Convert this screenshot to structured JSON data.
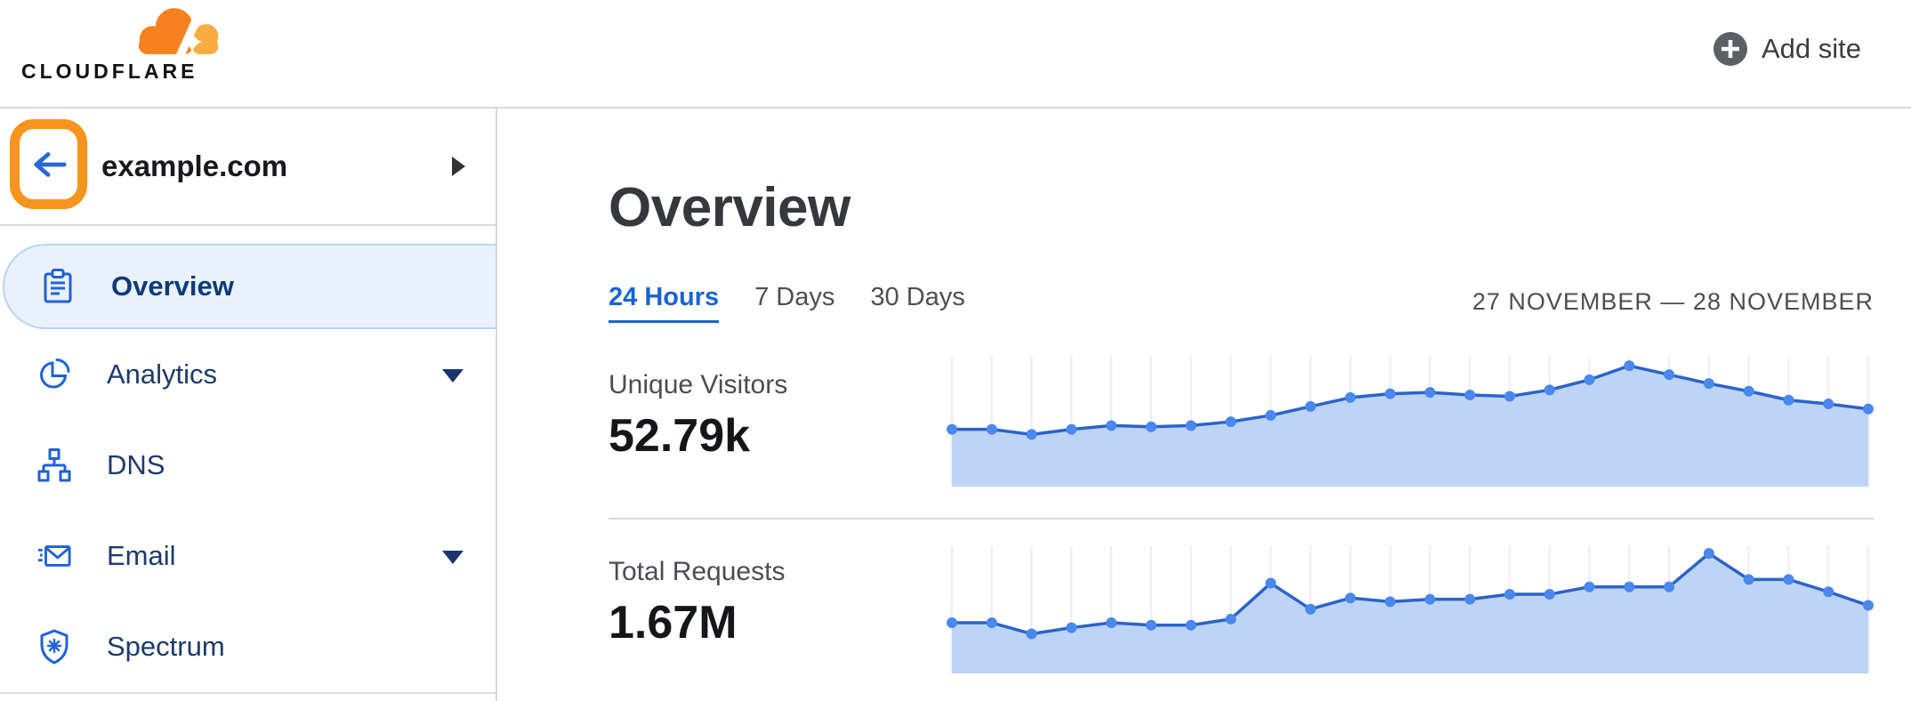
{
  "header": {
    "logo_text": "CLOUDFLARE",
    "add_site_label": "Add site"
  },
  "sidebar": {
    "site": {
      "name": "example.com"
    },
    "items": [
      {
        "label": "Overview",
        "icon": "clipboard-icon",
        "selected": true,
        "has_caret": false
      },
      {
        "label": "Analytics",
        "icon": "pie-chart-icon",
        "selected": false,
        "has_caret": true
      },
      {
        "label": "DNS",
        "icon": "dns-tree-icon",
        "selected": false,
        "has_caret": false
      },
      {
        "label": "Email",
        "icon": "email-icon",
        "selected": false,
        "has_caret": true
      },
      {
        "label": "Spectrum",
        "icon": "shield-icon",
        "selected": false,
        "has_caret": false
      }
    ]
  },
  "main": {
    "title": "Overview",
    "tabs": [
      {
        "label": "24 Hours",
        "active": true
      },
      {
        "label": "7 Days",
        "active": false
      },
      {
        "label": "30 Days",
        "active": false
      }
    ],
    "date_range": "27 NOVEMBER — 28 NOVEMBER",
    "metrics": [
      {
        "label": "Unique Visitors",
        "value": "52.79k"
      },
      {
        "label": "Total Requests",
        "value": "1.67M"
      }
    ]
  },
  "chart_data": [
    {
      "type": "area",
      "title": "Unique Visitors",
      "total_label": "52.79k",
      "period": "24 Hours",
      "x": "hourly points, 27 November — 28 November (no axis labels shown)",
      "ylabel": "",
      "legend": "none",
      "grid": "vertical gridlines at each point",
      "values_relative": [
        0.45,
        0.45,
        0.41,
        0.45,
        0.48,
        0.47,
        0.48,
        0.51,
        0.56,
        0.63,
        0.7,
        0.73,
        0.74,
        0.72,
        0.71,
        0.76,
        0.84,
        0.95,
        0.88,
        0.81,
        0.75,
        0.68,
        0.65,
        0.61
      ]
    },
    {
      "type": "area",
      "title": "Total Requests",
      "total_label": "1.67M",
      "period": "24 Hours",
      "x": "hourly points, 27 November — 28 November (no axis labels shown)",
      "ylabel": "",
      "legend": "none",
      "grid": "vertical gridlines at each point",
      "values_relative": [
        0.41,
        0.41,
        0.32,
        0.37,
        0.41,
        0.39,
        0.39,
        0.44,
        0.73,
        0.52,
        0.61,
        0.58,
        0.6,
        0.6,
        0.64,
        0.64,
        0.7,
        0.7,
        0.7,
        0.97,
        0.76,
        0.76,
        0.66,
        0.55
      ]
    }
  ],
  "colors": {
    "logo_orange": "#f6821f",
    "logo_orange_light": "#fbad41",
    "highlight_orange": "#f7941d",
    "link_blue": "#1a62d2",
    "sidebar_navy": "#1c3a6b",
    "icon_blue": "#2062d4",
    "chart_line": "#2b63c8",
    "chart_dot": "#4a87ee",
    "chart_fill": "#bdd4f7",
    "chart_grid": "#e9edf4"
  }
}
